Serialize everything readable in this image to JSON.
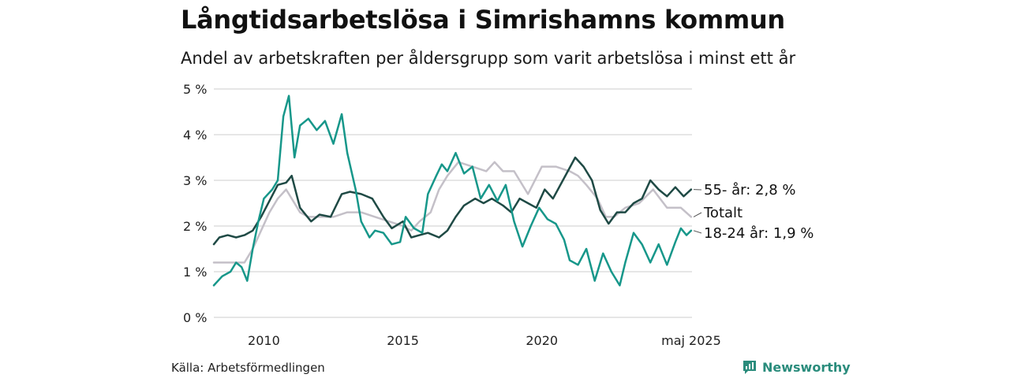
{
  "title": "Långtidsarbetslösa i Simrishamns kommun",
  "subtitle": "Andel av arbetskraften per åldersgrupp som varit arbetslösa i minst ett år",
  "source": "Källa: Arbetsförmedlingen",
  "brand": "Newsworthy",
  "colors": {
    "total": "#c4c0c8",
    "age55": "#1f4a45",
    "age18_24": "#17978a",
    "grid": "#dddddd",
    "brand": "#2a8c7c"
  },
  "chart_data": {
    "type": "line",
    "xlim": [
      2008.2,
      2025.4
    ],
    "ylim": [
      0,
      5
    ],
    "yticks": [
      0,
      1,
      2,
      3,
      4,
      5
    ],
    "yticklabels": [
      "0 %",
      "1 %",
      "2 %",
      "3 %",
      "4 %",
      "5 %"
    ],
    "xticks": [
      2010,
      2015,
      2020,
      2025.37
    ],
    "xticklabels": [
      "2010",
      "2015",
      "2020",
      "maj 2025"
    ],
    "end_labels": [
      "55- år: 2,8 %",
      "Totalt",
      "18-24 år: 1,9 %"
    ],
    "series": [
      {
        "name": "Totalt",
        "color": "#c4c0c8",
        "x": [
          2008.2,
          2008.8,
          2009.3,
          2009.6,
          2009.9,
          2010.2,
          2010.5,
          2010.8,
          2011.0,
          2011.3,
          2011.6,
          2012.0,
          2012.5,
          2013.0,
          2013.5,
          2014.0,
          2014.5,
          2015.0,
          2015.3,
          2015.6,
          2016.0,
          2016.3,
          2016.6,
          2017.0,
          2017.5,
          2018.0,
          2018.3,
          2018.6,
          2019.0,
          2019.5,
          2020.0,
          2020.5,
          2021.0,
          2021.3,
          2021.6,
          2022.0,
          2022.3,
          2022.6,
          2023.0,
          2023.5,
          2024.0,
          2024.5,
          2025.0,
          2025.37
        ],
        "y": [
          1.2,
          1.2,
          1.2,
          1.5,
          1.9,
          2.3,
          2.6,
          2.8,
          2.6,
          2.3,
          2.2,
          2.2,
          2.2,
          2.3,
          2.3,
          2.2,
          2.1,
          2.0,
          1.9,
          2.1,
          2.3,
          2.8,
          3.1,
          3.4,
          3.3,
          3.2,
          3.4,
          3.2,
          3.2,
          2.7,
          3.3,
          3.3,
          3.2,
          3.1,
          2.9,
          2.6,
          2.2,
          2.2,
          2.4,
          2.5,
          2.8,
          2.4,
          2.4,
          2.2
        ]
      },
      {
        "name": "55- år",
        "color": "#1f4a45",
        "x": [
          2008.2,
          2008.4,
          2008.7,
          2009.0,
          2009.3,
          2009.6,
          2009.9,
          2010.2,
          2010.5,
          2010.8,
          2011.0,
          2011.3,
          2011.7,
          2012.0,
          2012.4,
          2012.8,
          2013.1,
          2013.5,
          2013.9,
          2014.3,
          2014.6,
          2015.0,
          2015.3,
          2015.6,
          2015.9,
          2016.3,
          2016.6,
          2016.9,
          2017.2,
          2017.6,
          2017.9,
          2018.2,
          2018.6,
          2018.9,
          2019.2,
          2019.5,
          2019.8,
          2020.1,
          2020.4,
          2020.8,
          2021.2,
          2021.5,
          2021.8,
          2022.1,
          2022.4,
          2022.7,
          2023.0,
          2023.3,
          2023.6,
          2023.9,
          2024.2,
          2024.5,
          2024.8,
          2025.1,
          2025.37
        ],
        "y": [
          1.6,
          1.75,
          1.8,
          1.75,
          1.8,
          1.9,
          2.2,
          2.55,
          2.9,
          2.95,
          3.1,
          2.4,
          2.1,
          2.25,
          2.2,
          2.7,
          2.75,
          2.7,
          2.6,
          2.2,
          1.95,
          2.1,
          1.75,
          1.8,
          1.85,
          1.75,
          1.9,
          2.2,
          2.45,
          2.6,
          2.5,
          2.6,
          2.45,
          2.3,
          2.6,
          2.5,
          2.4,
          2.8,
          2.6,
          3.05,
          3.5,
          3.3,
          3.0,
          2.35,
          2.05,
          2.3,
          2.3,
          2.5,
          2.6,
          3.0,
          2.8,
          2.65,
          2.85,
          2.65,
          2.8
        ]
      },
      {
        "name": "18-24 år",
        "color": "#17978a",
        "x": [
          2008.2,
          2008.5,
          2008.8,
          2009.0,
          2009.2,
          2009.4,
          2009.6,
          2009.8,
          2010.0,
          2010.3,
          2010.5,
          2010.7,
          2010.9,
          2011.1,
          2011.3,
          2011.6,
          2011.9,
          2012.2,
          2012.5,
          2012.8,
          2013.0,
          2013.3,
          2013.5,
          2013.8,
          2014.0,
          2014.3,
          2014.6,
          2014.9,
          2015.1,
          2015.4,
          2015.7,
          2015.9,
          2016.2,
          2016.4,
          2016.6,
          2016.9,
          2017.2,
          2017.5,
          2017.8,
          2018.1,
          2018.4,
          2018.7,
          2019.0,
          2019.3,
          2019.6,
          2019.9,
          2020.2,
          2020.5,
          2020.8,
          2021.0,
          2021.3,
          2021.6,
          2021.9,
          2022.2,
          2022.5,
          2022.8,
          2023.0,
          2023.3,
          2023.6,
          2023.9,
          2024.2,
          2024.5,
          2024.8,
          2025.0,
          2025.2,
          2025.37
        ],
        "y": [
          0.7,
          0.9,
          1.0,
          1.2,
          1.1,
          0.8,
          1.5,
          2.1,
          2.6,
          2.8,
          3.0,
          4.4,
          4.85,
          3.5,
          4.2,
          4.35,
          4.1,
          4.3,
          3.8,
          4.45,
          3.6,
          2.8,
          2.1,
          1.75,
          1.9,
          1.85,
          1.6,
          1.65,
          2.2,
          1.95,
          1.85,
          2.7,
          3.1,
          3.35,
          3.2,
          3.6,
          3.15,
          3.3,
          2.6,
          2.9,
          2.55,
          2.9,
          2.1,
          1.55,
          2.0,
          2.4,
          2.15,
          2.05,
          1.7,
          1.25,
          1.15,
          1.5,
          0.8,
          1.4,
          1.0,
          0.7,
          1.2,
          1.85,
          1.6,
          1.2,
          1.6,
          1.15,
          1.65,
          1.95,
          1.8,
          1.9
        ]
      }
    ]
  }
}
